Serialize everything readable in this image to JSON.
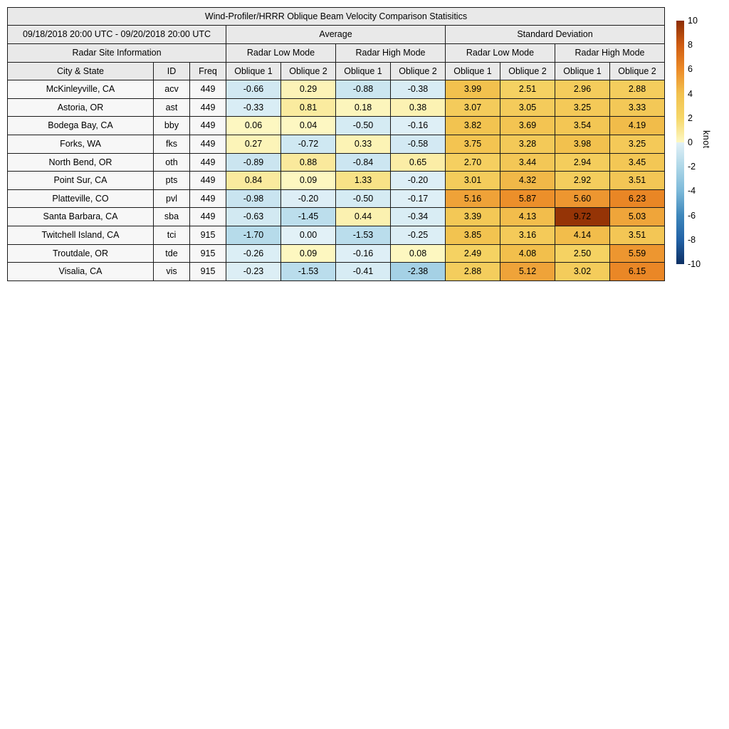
{
  "title": "Wind-Profiler/HRRR Oblique Beam Velocity Comparison Statisitics",
  "date_range": "09/18/2018 20:00 UTC - 09/20/2018 20:00 UTC",
  "headers": {
    "average": "Average",
    "std_dev": "Standard Deviation",
    "site_info": "Radar Site Information",
    "low_mode": "Radar Low Mode",
    "high_mode": "Radar High Mode",
    "city": "City & State",
    "id": "ID",
    "freq": "Freq",
    "oblique1": "Oblique 1",
    "oblique2": "Oblique 2"
  },
  "chart_data": {
    "type": "heatmap",
    "value_columns": [
      "average_low_oblique1",
      "average_low_oblique2",
      "average_high_oblique1",
      "average_high_oblique2",
      "std_low_oblique1",
      "std_low_oblique2",
      "std_high_oblique1",
      "std_high_oblique2"
    ],
    "rows": [
      {
        "city": "McKinleyville, CA",
        "id": "acv",
        "freq": "449",
        "values": [
          -0.66,
          0.29,
          -0.88,
          -0.38,
          3.99,
          2.51,
          2.96,
          2.88
        ]
      },
      {
        "city": "Astoria, OR",
        "id": "ast",
        "freq": "449",
        "values": [
          -0.33,
          0.81,
          0.18,
          0.38,
          3.07,
          3.05,
          3.25,
          3.33
        ]
      },
      {
        "city": "Bodega Bay, CA",
        "id": "bby",
        "freq": "449",
        "values": [
          0.06,
          0.04,
          -0.5,
          -0.16,
          3.82,
          3.69,
          3.54,
          4.19
        ]
      },
      {
        "city": "Forks, WA",
        "id": "fks",
        "freq": "449",
        "values": [
          0.27,
          -0.72,
          0.33,
          -0.58,
          3.75,
          3.28,
          3.98,
          3.25
        ]
      },
      {
        "city": "North Bend, OR",
        "id": "oth",
        "freq": "449",
        "values": [
          -0.89,
          0.88,
          -0.84,
          0.65,
          2.7,
          3.44,
          2.94,
          3.45
        ]
      },
      {
        "city": "Point Sur, CA",
        "id": "pts",
        "freq": "449",
        "values": [
          0.84,
          0.09,
          1.33,
          -0.2,
          3.01,
          4.32,
          2.92,
          3.51
        ]
      },
      {
        "city": "Platteville, CO",
        "id": "pvl",
        "freq": "449",
        "values": [
          -0.98,
          -0.2,
          -0.5,
          -0.17,
          5.16,
          5.87,
          5.6,
          6.23
        ]
      },
      {
        "city": "Santa Barbara, CA",
        "id": "sba",
        "freq": "449",
        "values": [
          -0.63,
          -1.45,
          0.44,
          -0.34,
          3.39,
          4.13,
          9.72,
          5.03
        ]
      },
      {
        "city": "Twitchell Island, CA",
        "id": "tci",
        "freq": "915",
        "values": [
          -1.7,
          0.0,
          -1.53,
          -0.25,
          3.85,
          3.16,
          4.14,
          3.51
        ]
      },
      {
        "city": "Troutdale, OR",
        "id": "tde",
        "freq": "915",
        "values": [
          -0.26,
          0.09,
          -0.16,
          0.08,
          2.49,
          4.08,
          2.5,
          5.59
        ]
      },
      {
        "city": "Visalia, CA",
        "id": "vis",
        "freq": "915",
        "values": [
          -0.23,
          -1.53,
          -0.41,
          -2.38,
          2.88,
          5.12,
          3.02,
          6.15
        ]
      }
    ],
    "colorbar": {
      "label": "knot",
      "ticks": [
        10,
        8,
        6,
        4,
        2,
        0,
        -2,
        -4,
        -6,
        -8,
        -10
      ],
      "vmin": -10,
      "vmax": 10
    }
  },
  "colors": {
    "header_bg": "#e9e9e9",
    "label_cell_bg": "#f7f7f7",
    "border": "#1a1a1a",
    "colormap_negative": [
      [
        -10,
        "#0d2f63"
      ],
      [
        -8,
        "#2262a6"
      ],
      [
        -6,
        "#3e87bb"
      ],
      [
        -4,
        "#7cb9d9"
      ],
      [
        -2,
        "#aed7e8"
      ],
      [
        0,
        "#e2f1f7"
      ]
    ],
    "colormap_positive": [
      [
        0,
        "#fdf8c4"
      ],
      [
        2,
        "#f6d769"
      ],
      [
        4,
        "#f2c14e"
      ],
      [
        6,
        "#ec8b28"
      ],
      [
        8,
        "#cf5c12"
      ],
      [
        10,
        "#8c2d04"
      ]
    ]
  }
}
